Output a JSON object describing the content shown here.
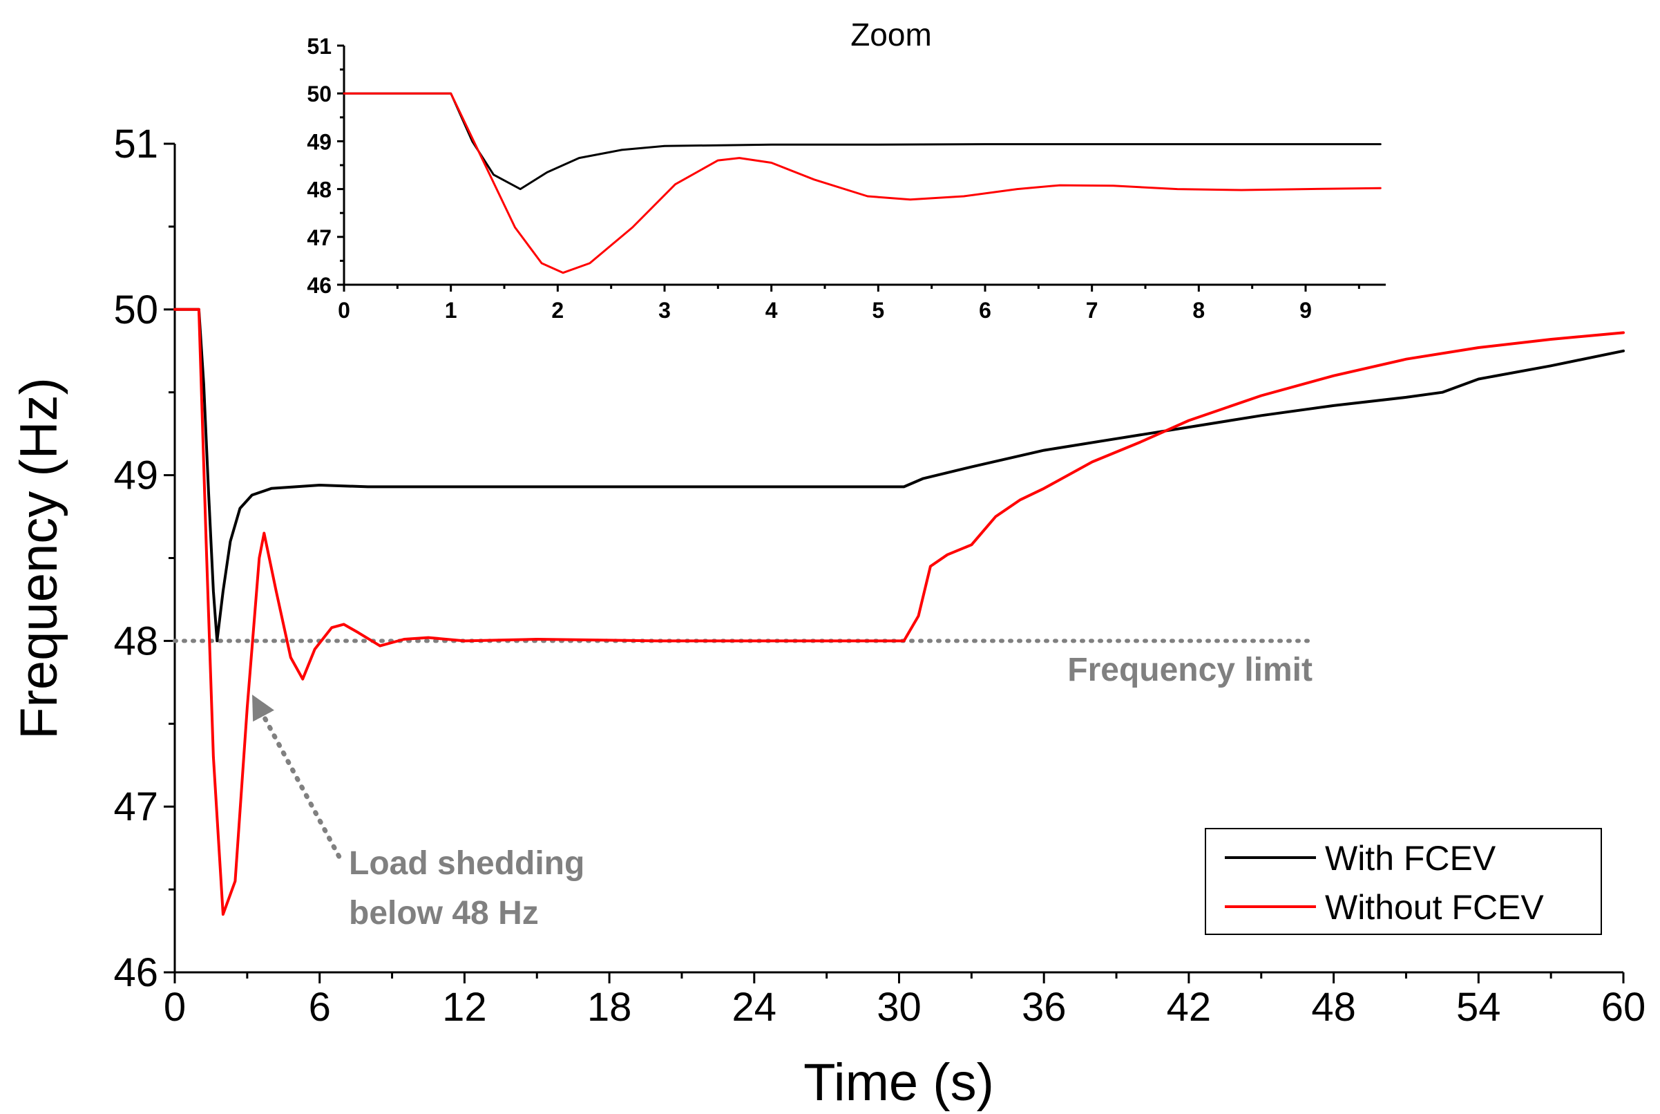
{
  "chart_data": [
    {
      "id": "main",
      "type": "line",
      "title": "",
      "xlabel": "Time (s)",
      "ylabel": "Frequency (Hz)",
      "xlim": [
        0,
        60
      ],
      "ylim": [
        46,
        51
      ],
      "xticks": [
        0,
        6,
        12,
        18,
        24,
        30,
        36,
        42,
        48,
        54,
        60
      ],
      "yticks": [
        46,
        47,
        48,
        49,
        50,
        51
      ],
      "series": [
        {
          "name": "With FCEV",
          "color": "#000000",
          "x": [
            0,
            1,
            1.2,
            1.4,
            1.6,
            1.75,
            2.0,
            2.3,
            2.7,
            3.2,
            4,
            5,
            6,
            8,
            12,
            18,
            24,
            29,
            30.2,
            31,
            33,
            36,
            39,
            42,
            45,
            48,
            51,
            52.5,
            54,
            57,
            60
          ],
          "y": [
            50,
            50,
            49.55,
            48.9,
            48.3,
            48.0,
            48.3,
            48.6,
            48.8,
            48.88,
            48.92,
            48.93,
            48.94,
            48.93,
            48.93,
            48.93,
            48.93,
            48.93,
            48.93,
            48.98,
            49.05,
            49.15,
            49.22,
            49.29,
            49.36,
            49.42,
            49.47,
            49.5,
            49.58,
            49.66,
            49.75
          ]
        },
        {
          "name": "Without FCEV",
          "color": "#ff0000",
          "x": [
            0,
            1,
            1.3,
            1.6,
            2.0,
            2.5,
            3.0,
            3.5,
            3.7,
            4.2,
            4.8,
            5.3,
            5.8,
            6.5,
            7.0,
            7.6,
            8.5,
            9.5,
            10.5,
            12,
            15,
            20,
            25,
            30.2,
            30.8,
            31.3,
            32,
            33,
            34,
            35,
            36,
            38,
            40,
            42,
            45,
            48,
            51,
            54,
            57,
            60
          ],
          "y": [
            50,
            50,
            48.6,
            47.3,
            46.35,
            46.55,
            47.6,
            48.5,
            48.65,
            48.3,
            47.9,
            47.77,
            47.95,
            48.08,
            48.1,
            48.05,
            47.97,
            48.01,
            48.02,
            48.0,
            48.01,
            48.0,
            48.0,
            48.0,
            48.15,
            48.45,
            48.52,
            48.58,
            48.75,
            48.85,
            48.92,
            49.08,
            49.2,
            49.33,
            49.48,
            49.6,
            49.7,
            49.77,
            49.82,
            49.86
          ]
        }
      ],
      "reference_lines": [
        {
          "name": "Frequency limit",
          "y": 48,
          "x_start": 0,
          "x_end": 47,
          "color": "#808080",
          "style": "dotted"
        }
      ],
      "annotations": [
        {
          "text_lines": [
            "Load shedding",
            "below 48 Hz"
          ],
          "arrow_from": [
            6.8,
            46.7
          ],
          "arrow_to": [
            3.3,
            47.65
          ],
          "color": "#808080"
        }
      ],
      "legend": {
        "position": "bottom-right",
        "entries": [
          "With FCEV",
          "Without FCEV"
        ]
      }
    },
    {
      "id": "inset",
      "type": "line",
      "title": "Zoom",
      "xlabel": "",
      "ylabel": "",
      "xlim": [
        0,
        9.75
      ],
      "ylim": [
        46,
        51
      ],
      "xticks": [
        0,
        1,
        2,
        3,
        4,
        5,
        6,
        7,
        8,
        9
      ],
      "yticks": [
        46,
        47,
        48,
        49,
        50,
        51
      ],
      "series": [
        {
          "name": "With FCEV",
          "color": "#000000",
          "x": [
            0,
            1,
            1.2,
            1.4,
            1.65,
            1.9,
            2.2,
            2.6,
            3,
            4,
            5,
            6,
            7,
            8,
            9,
            9.7
          ],
          "y": [
            50,
            50,
            49.0,
            48.3,
            48.0,
            48.35,
            48.65,
            48.82,
            48.9,
            48.93,
            48.93,
            48.94,
            48.94,
            48.94,
            48.94,
            48.94
          ]
        },
        {
          "name": "Without FCEV",
          "color": "#ff0000",
          "x": [
            0,
            1,
            1.3,
            1.6,
            1.85,
            2.05,
            2.3,
            2.7,
            3.1,
            3.5,
            3.7,
            4.0,
            4.4,
            4.9,
            5.3,
            5.8,
            6.3,
            6.7,
            7.2,
            7.8,
            8.4,
            9.0,
            9.7
          ],
          "y": [
            50,
            50,
            48.6,
            47.2,
            46.45,
            46.25,
            46.45,
            47.2,
            48.1,
            48.6,
            48.65,
            48.55,
            48.2,
            47.85,
            47.78,
            47.85,
            48.0,
            48.08,
            48.07,
            48.0,
            47.98,
            48.0,
            48.02
          ]
        }
      ]
    }
  ]
}
